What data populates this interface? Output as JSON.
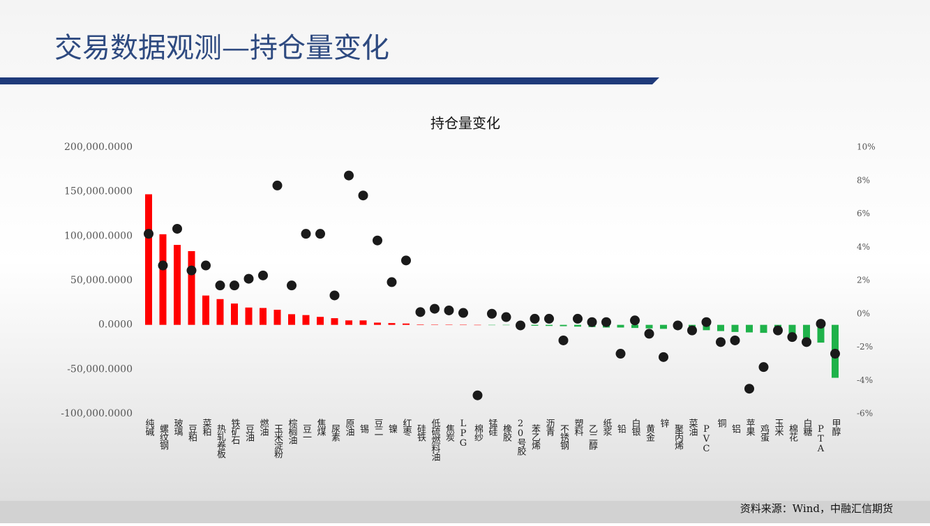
{
  "header": {
    "title": "交易数据观测—持仓量变化"
  },
  "chart_data": {
    "type": "combo",
    "title": "持仓量变化",
    "categories": [
      "纯碱",
      "螺纹钢",
      "玻璃",
      "豆粕",
      "菜粕",
      "热轧卷板",
      "铁矿石",
      "豆油",
      "燃油",
      "玉米淀粉",
      "棕榈油",
      "豆一",
      "焦煤",
      "尿素",
      "原油",
      "锡",
      "豆二",
      "镍",
      "红枣",
      "硅铁",
      "低硫燃料油",
      "焦炭",
      "LPG",
      "棉纱",
      "锰硅",
      "橡胶",
      "20号胶",
      "苯乙烯",
      "沥青",
      "不锈钢",
      "塑料",
      "乙二醇",
      "纸浆",
      "铅",
      "白银",
      "黄金",
      "锌",
      "聚丙烯",
      "菜油",
      "PVC",
      "铜",
      "铝",
      "苹果",
      "鸡蛋",
      "玉米",
      "棉花",
      "白糖",
      "PTA",
      "甲醇"
    ],
    "series": [
      {
        "type": "bar",
        "color": "#ff0000",
        "negative_color": "#1fb24a",
        "values": [
          147000,
          102000,
          90000,
          83000,
          33000,
          29000,
          24000,
          19500,
          19000,
          17000,
          12000,
          11000,
          9000,
          7500,
          5000,
          5000,
          2500,
          2000,
          1500,
          500,
          300,
          200,
          100,
          0,
          -100,
          -300,
          -500,
          -1000,
          -1200,
          -1500,
          -2000,
          -2500,
          -3000,
          -3000,
          -3500,
          -4000,
          -4500,
          -5000,
          -5500,
          -6000,
          -7000,
          -8000,
          -8500,
          -9000,
          -10000,
          -12000,
          -15000,
          -20000,
          -59600
        ]
      },
      {
        "type": "scatter",
        "axis": "y2",
        "color": "#1a1a1a",
        "values": [
          4.8,
          2.9,
          5.1,
          2.6,
          2.9,
          1.7,
          1.7,
          2.1,
          2.3,
          7.7,
          1.7,
          4.8,
          4.8,
          1.1,
          8.3,
          7.1,
          4.4,
          1.9,
          3.2,
          0.1,
          0.3,
          0.2,
          0.05,
          -4.9,
          0,
          -0.2,
          -0.7,
          -0.3,
          -0.3,
          -1.6,
          -0.3,
          -0.5,
          -0.5,
          -2.4,
          -0.4,
          -1.2,
          -2.6,
          -0.7,
          -1.0,
          -0.5,
          -1.7,
          -1.6,
          -4.5,
          -3.2,
          -1.0,
          -1.4,
          -1.7,
          -0.6,
          -2.4
        ]
      }
    ],
    "ylim": [
      -100000,
      200000
    ],
    "yticks": [
      {
        "value": -100000,
        "label": "-100,000.0000"
      },
      {
        "value": -50000,
        "label": "-50,000.0000"
      },
      {
        "value": 0,
        "label": "0.0000"
      },
      {
        "value": 50000,
        "label": "50,000.0000"
      },
      {
        "value": 100000,
        "label": "100,000.0000"
      },
      {
        "value": 150000,
        "label": "150,000.0000"
      },
      {
        "value": 200000,
        "label": "200,000.0000"
      }
    ],
    "y2lim": [
      -6,
      10
    ],
    "y2ticks": [
      {
        "value": -6,
        "label": "-6%"
      },
      {
        "value": -4,
        "label": "-4%"
      },
      {
        "value": -2,
        "label": "-2%"
      },
      {
        "value": 0,
        "label": "0%"
      },
      {
        "value": 2,
        "label": "2%"
      },
      {
        "value": 4,
        "label": "4%"
      },
      {
        "value": 6,
        "label": "6%"
      },
      {
        "value": 8,
        "label": "8%"
      },
      {
        "value": 10,
        "label": "10%"
      }
    ]
  },
  "footer": {
    "source": "资料来源：Wind，中融汇信期货"
  }
}
